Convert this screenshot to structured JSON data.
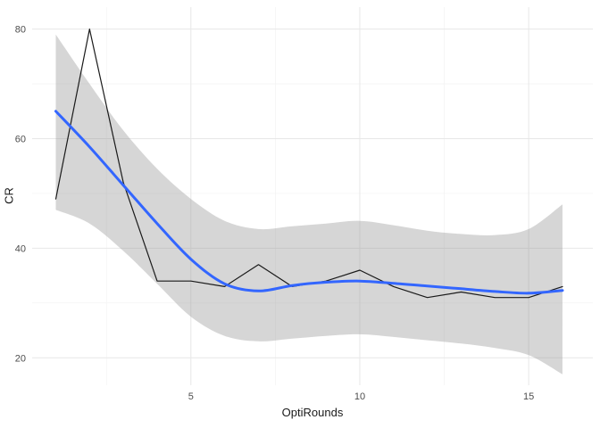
{
  "figure": {
    "background": "#ffffff"
  },
  "chart_data": {
    "type": "line",
    "title": "",
    "xlabel": "OptiRounds",
    "ylabel": "CR",
    "xlim": [
      0.3,
      16.9
    ],
    "ylim": [
      15,
      84
    ],
    "x_ticks": [
      5,
      10,
      15
    ],
    "y_ticks": [
      20,
      40,
      60,
      80
    ],
    "x_minor_ticks": [
      2.5,
      7.5,
      12.5
    ],
    "y_minor_ticks": [
      30,
      50,
      70
    ],
    "x": [
      1,
      2,
      3,
      4,
      5,
      6,
      7,
      8,
      9,
      10,
      11,
      12,
      13,
      14,
      15,
      16
    ],
    "series": [
      {
        "name": "raw-cr-line",
        "style": "jagged",
        "color": "#1a1a1a",
        "width": 1.2,
        "values": [
          49,
          80,
          52,
          34,
          34,
          33,
          37,
          33,
          34,
          36,
          33,
          31,
          32,
          31,
          31,
          33
        ]
      },
      {
        "name": "loess-smooth-line",
        "style": "smooth",
        "color": "#3366ff",
        "width": 3,
        "values": [
          65,
          58.5,
          51.5,
          44.5,
          38,
          33.5,
          32.2,
          33.2,
          33.8,
          34,
          33.6,
          33.1,
          32.6,
          32.1,
          31.8,
          32.3
        ]
      }
    ],
    "ribbon": {
      "name": "confidence-band",
      "color": "#999999",
      "opacity": 0.4,
      "upper": [
        79,
        70,
        61.5,
        54.5,
        49,
        45,
        43.5,
        44,
        44.5,
        45,
        44.2,
        43.2,
        42.6,
        42.4,
        43.5,
        48
      ],
      "lower": [
        47,
        44.5,
        39.5,
        33.5,
        27.5,
        24,
        23,
        23.5,
        24,
        24.3,
        23.8,
        23.2,
        22.6,
        21.8,
        20.5,
        17
      ]
    },
    "grid": {
      "major_color": "#e7e7e7",
      "minor_color": "#f2f2f2",
      "background": "#ffffff"
    },
    "tick_label_color": "#4d4d4d",
    "axis_title_color": "#1a1a1a",
    "legend": "none"
  }
}
